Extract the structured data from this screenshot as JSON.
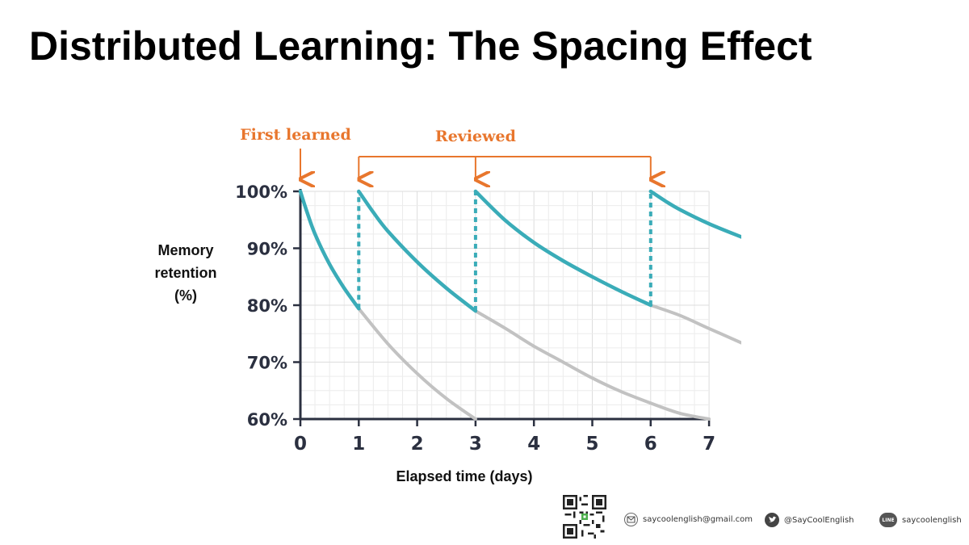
{
  "page": {
    "title": "Distributed Learning: The Spacing Effect"
  },
  "chart_data": {
    "type": "line",
    "xlabel": "Elapsed time (days)",
    "ylabel_lines": [
      "Memory",
      "retention",
      "(%)"
    ],
    "xlim": [
      0,
      7
    ],
    "ylim": [
      60,
      100
    ],
    "x_ticks": [
      0,
      1,
      2,
      3,
      4,
      5,
      6,
      7
    ],
    "y_ticks": [
      60,
      70,
      80,
      90,
      100
    ],
    "y_tick_labels": [
      "60%",
      "70%",
      "80%",
      "90%",
      "100%"
    ],
    "grid": true,
    "colors": {
      "review": "#3aacb8",
      "baseline": "#c2c2c2",
      "annotation": "#e8762d",
      "axis": "#2b3040"
    },
    "series": [
      {
        "role": "reviewed-curve",
        "segments": [
          {
            "x": [
              0,
              0.1,
              0.25,
              0.5,
              0.75,
              1
            ],
            "y": [
              100,
              96.8,
              92.5,
              87.2,
              83.0,
              79.4
            ]
          },
          {
            "x": [
              1,
              1.25,
              1.5,
              2,
              2.5,
              3
            ],
            "y": [
              100,
              96.3,
              93.0,
              87.6,
              83.0,
              79.0
            ]
          },
          {
            "x": [
              3,
              3.5,
              4,
              4.5,
              5,
              5.5,
              6
            ],
            "y": [
              100,
              95.0,
              91.0,
              87.8,
              85.0,
              82.4,
              80.0
            ]
          },
          {
            "x": [
              6,
              6.25,
              6.5,
              7,
              7.55
            ],
            "y": [
              100,
              98.3,
              96.8,
              94.3,
              92.0
            ]
          }
        ]
      },
      {
        "role": "forgetting-curve",
        "segments": [
          {
            "x": [
              1,
              1.5,
              2,
              2.5,
              3
            ],
            "y": [
              79.4,
              73.2,
              68.0,
              63.6,
              60.0
            ]
          },
          {
            "x": [
              3,
              3.5,
              4,
              4.5,
              5,
              5.5,
              6,
              6.5,
              7
            ],
            "y": [
              79.0,
              76.0,
              72.8,
              70.0,
              67.2,
              64.8,
              62.8,
              61.0,
              60.0
            ]
          },
          {
            "x": [
              6,
              6.5,
              7,
              7.55
            ],
            "y": [
              80.0,
              78.2,
              75.9,
              73.4
            ]
          }
        ]
      }
    ],
    "review_jumps": [
      {
        "x": 1,
        "from": 79.4,
        "to": 100
      },
      {
        "x": 3,
        "from": 79.0,
        "to": 100
      },
      {
        "x": 6,
        "from": 80.0,
        "to": 100
      }
    ],
    "annotations": {
      "first_learned": {
        "label": "First learned",
        "x": 0
      },
      "reviewed": {
        "label": "Reviewed",
        "x": [
          1,
          3,
          6
        ]
      }
    }
  },
  "footer": {
    "qr_icon": "qr-code",
    "email": {
      "icon": "mail-icon",
      "text": "saycoolenglish@gmail.com"
    },
    "twitter": {
      "icon": "twitter-icon",
      "text": "@SayCoolEnglish"
    },
    "line": {
      "icon": "line-icon",
      "badge": "LINE",
      "text": "saycoolenglish"
    }
  }
}
